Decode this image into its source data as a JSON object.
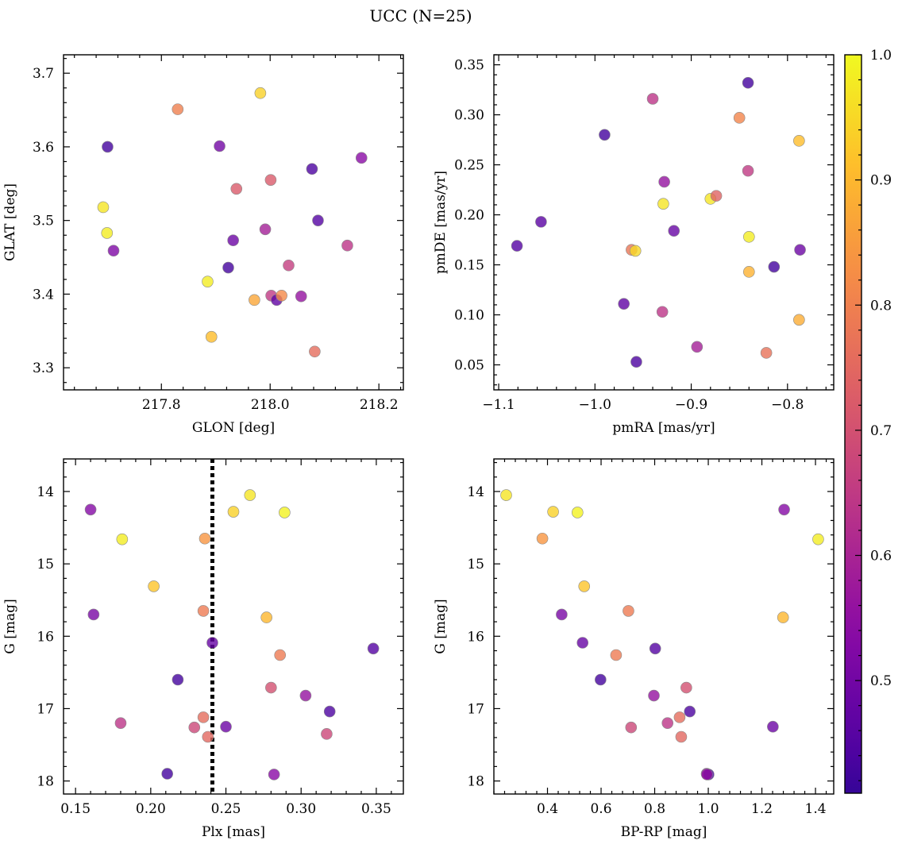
{
  "title": "UCC (N=25)",
  "colorbar": {
    "min": 0.41,
    "max": 1.0,
    "ticks": [
      0.5,
      0.6,
      0.7,
      0.8,
      0.9,
      1.0
    ],
    "tick_labels": [
      "0.5",
      "0.6",
      "0.7",
      "0.8",
      "0.9",
      "1.0"
    ],
    "colormap": "plasma"
  },
  "chart_data": [
    {
      "type": "scatter",
      "id": "glon-glat",
      "xlabel": "GLON [deg]",
      "ylabel": "GLAT [deg]",
      "xlim": [
        217.62,
        218.245
      ],
      "ylim": [
        3.27,
        3.725
      ],
      "y_inverted": false,
      "xticks": [
        217.8,
        218.0,
        218.2
      ],
      "xtick_labels": [
        "217.8",
        "218.0",
        "218.2"
      ],
      "yticks": [
        3.3,
        3.4,
        3.5,
        3.6,
        3.7
      ],
      "ytick_labels": [
        "3.3",
        "3.4",
        "3.5",
        "3.6",
        "3.7"
      ],
      "x": [
        217.701,
        217.693,
        217.712,
        217.83,
        217.907,
        217.938,
        217.932,
        217.923,
        217.885,
        217.892,
        217.971,
        217.982,
        218.001,
        217.991,
        218.034,
        218.002,
        218.012,
        218.021,
        218.057,
        218.077,
        218.088,
        218.082,
        218.142,
        218.168,
        217.7
      ],
      "y": [
        3.6,
        3.518,
        3.459,
        3.651,
        3.601,
        3.543,
        3.473,
        3.436,
        3.417,
        3.342,
        3.392,
        3.673,
        3.555,
        3.488,
        3.439,
        3.398,
        3.392,
        3.398,
        3.397,
        3.57,
        3.5,
        3.322,
        3.466,
        3.585,
        3.483
      ],
      "c": [
        0.43,
        0.97,
        0.52,
        0.8,
        0.5,
        0.72,
        0.49,
        0.43,
        0.98,
        0.91,
        0.87,
        0.94,
        0.72,
        0.59,
        0.66,
        0.65,
        0.47,
        0.82,
        0.56,
        0.44,
        0.45,
        0.76,
        0.64,
        0.54,
        0.98
      ]
    },
    {
      "type": "scatter",
      "id": "pm",
      "xlabel": "pmRA [mas/yr]",
      "ylabel": "pmDE [mas/yr]",
      "xlim": [
        -1.105,
        -0.752
      ],
      "ylim": [
        0.025,
        0.36
      ],
      "y_inverted": false,
      "xticks": [
        -1.1,
        -1.0,
        -0.9,
        -0.8
      ],
      "xtick_labels": [
        "−1.1",
        "−1.0",
        "−0.9",
        "−0.8"
      ],
      "yticks": [
        0.05,
        0.1,
        0.15,
        0.2,
        0.25,
        0.3,
        0.35
      ],
      "ytick_labels": [
        "0.05",
        "0.10",
        "0.15",
        "0.20",
        "0.25",
        "0.30",
        "0.35"
      ],
      "x": [
        -1.081,
        -1.056,
        -0.99,
        -0.97,
        -0.962,
        -0.957,
        -0.958,
        -0.94,
        -0.929,
        -0.93,
        -0.928,
        -0.918,
        -0.894,
        -0.88,
        -0.874,
        -0.85,
        -0.841,
        -0.841,
        -0.84,
        -0.84,
        -0.822,
        -0.814,
        -0.788,
        -0.787,
        -0.788
      ],
      "y": [
        0.169,
        0.193,
        0.28,
        0.111,
        0.165,
        0.053,
        0.164,
        0.316,
        0.211,
        0.103,
        0.233,
        0.184,
        0.068,
        0.216,
        0.219,
        0.297,
        0.332,
        0.244,
        0.178,
        0.143,
        0.062,
        0.148,
        0.274,
        0.165,
        0.095
      ],
      "c": [
        0.45,
        0.46,
        0.43,
        0.47,
        0.78,
        0.44,
        0.95,
        0.64,
        0.97,
        0.64,
        0.56,
        0.48,
        0.59,
        0.97,
        0.74,
        0.81,
        0.43,
        0.65,
        0.98,
        0.89,
        0.77,
        0.43,
        0.91,
        0.49,
        0.88
      ]
    },
    {
      "type": "scatter",
      "id": "plx-g",
      "xlabel": "Plx [mas]",
      "ylabel": "G [mag]",
      "xlim": [
        0.142,
        0.368
      ],
      "ylim": [
        13.55,
        18.18
      ],
      "y_inverted": true,
      "xticks": [
        0.15,
        0.2,
        0.25,
        0.3,
        0.35
      ],
      "xtick_labels": [
        "0.15",
        "0.20",
        "0.25",
        "0.30",
        "0.35"
      ],
      "yticks": [
        14,
        15,
        16,
        17,
        18
      ],
      "ytick_labels": [
        "14",
        "15",
        "16",
        "17",
        "18"
      ],
      "vline": 0.241,
      "x": [
        0.16,
        0.181,
        0.162,
        0.202,
        0.18,
        0.211,
        0.218,
        0.229,
        0.236,
        0.235,
        0.235,
        0.238,
        0.241,
        0.255,
        0.25,
        0.266,
        0.277,
        0.28,
        0.286,
        0.289,
        0.282,
        0.303,
        0.317,
        0.319,
        0.348
      ],
      "y": [
        14.25,
        14.66,
        15.7,
        15.31,
        17.2,
        17.9,
        16.6,
        17.26,
        14.65,
        15.65,
        17.12,
        17.39,
        16.09,
        14.28,
        17.25,
        14.05,
        15.74,
        16.71,
        16.26,
        14.29,
        17.91,
        16.82,
        17.35,
        17.04,
        16.17
      ],
      "c": [
        0.53,
        0.98,
        0.51,
        0.92,
        0.64,
        0.43,
        0.43,
        0.68,
        0.84,
        0.79,
        0.76,
        0.75,
        0.48,
        0.94,
        0.49,
        0.97,
        0.9,
        0.7,
        0.79,
        0.99,
        0.54,
        0.56,
        0.68,
        0.44,
        0.45
      ]
    },
    {
      "type": "scatter",
      "id": "bprp-g",
      "xlabel": "BP-RP [mag]",
      "ylabel": "G [mag]",
      "xlim": [
        0.2,
        1.468
      ],
      "ylim": [
        13.55,
        18.18
      ],
      "y_inverted": true,
      "xticks": [
        0.4,
        0.6,
        0.8,
        1.0,
        1.2,
        1.4
      ],
      "xtick_labels": [
        "0.4",
        "0.6",
        "0.8",
        "1.0",
        "1.2",
        "1.4"
      ],
      "yticks": [
        14,
        15,
        16,
        17,
        18
      ],
      "ytick_labels": [
        "14",
        "15",
        "16",
        "17",
        "18"
      ],
      "x": [
        0.246,
        0.421,
        0.512,
        0.381,
        0.537,
        0.453,
        0.531,
        0.598,
        0.702,
        0.656,
        0.712,
        0.802,
        0.797,
        0.848,
        0.893,
        0.899,
        0.918,
        0.931,
        0.994,
        1.001,
        1.241,
        1.283,
        1.279,
        1.41,
        0.995
      ],
      "y": [
        14.05,
        14.28,
        14.29,
        14.65,
        15.31,
        15.7,
        16.09,
        16.6,
        15.65,
        16.26,
        17.26,
        16.17,
        16.82,
        17.2,
        17.12,
        17.39,
        16.71,
        17.04,
        17.9,
        17.91,
        17.25,
        14.25,
        15.74,
        14.66,
        17.91
      ],
      "c": [
        0.97,
        0.94,
        0.99,
        0.84,
        0.92,
        0.51,
        0.48,
        0.43,
        0.79,
        0.79,
        0.68,
        0.45,
        0.56,
        0.64,
        0.76,
        0.75,
        0.7,
        0.44,
        0.54,
        0.43,
        0.49,
        0.53,
        0.9,
        0.98,
        0.56
      ]
    }
  ]
}
